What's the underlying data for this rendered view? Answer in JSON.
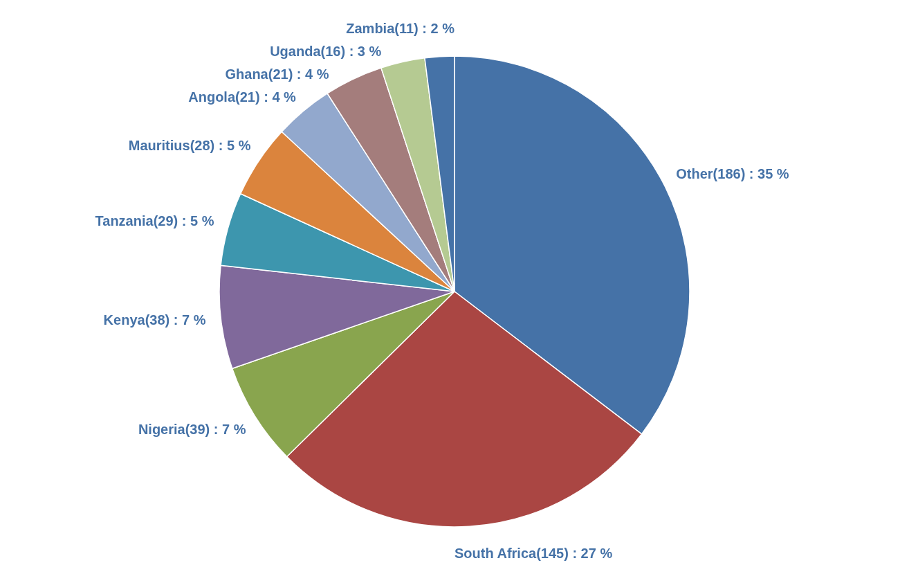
{
  "chart_data": {
    "type": "pie",
    "categories": [
      "Other(186)",
      "South Africa(145)",
      "Nigeria(39)",
      "Kenya(38)",
      "Tanzania(29)",
      "Mauritius(28)",
      "Angola(21)",
      "Ghana(21)",
      "Uganda(16)",
      "Zambia(11)"
    ],
    "values": [
      35,
      27,
      7,
      7,
      5,
      5,
      4,
      4,
      3,
      2
    ],
    "value_labels": [
      "35 %",
      "27 %",
      "7 %",
      "7 %",
      "5 %",
      "5 %",
      "4 %",
      "4 %",
      "3 %",
      "2 %"
    ],
    "colors": [
      "#4572a7",
      "#aa4643",
      "#89a54e",
      "#80699b",
      "#3d96ae",
      "#db843d",
      "#92a8cd",
      "#a47d7c",
      "#b5ca92",
      "#4572a7"
    ]
  }
}
